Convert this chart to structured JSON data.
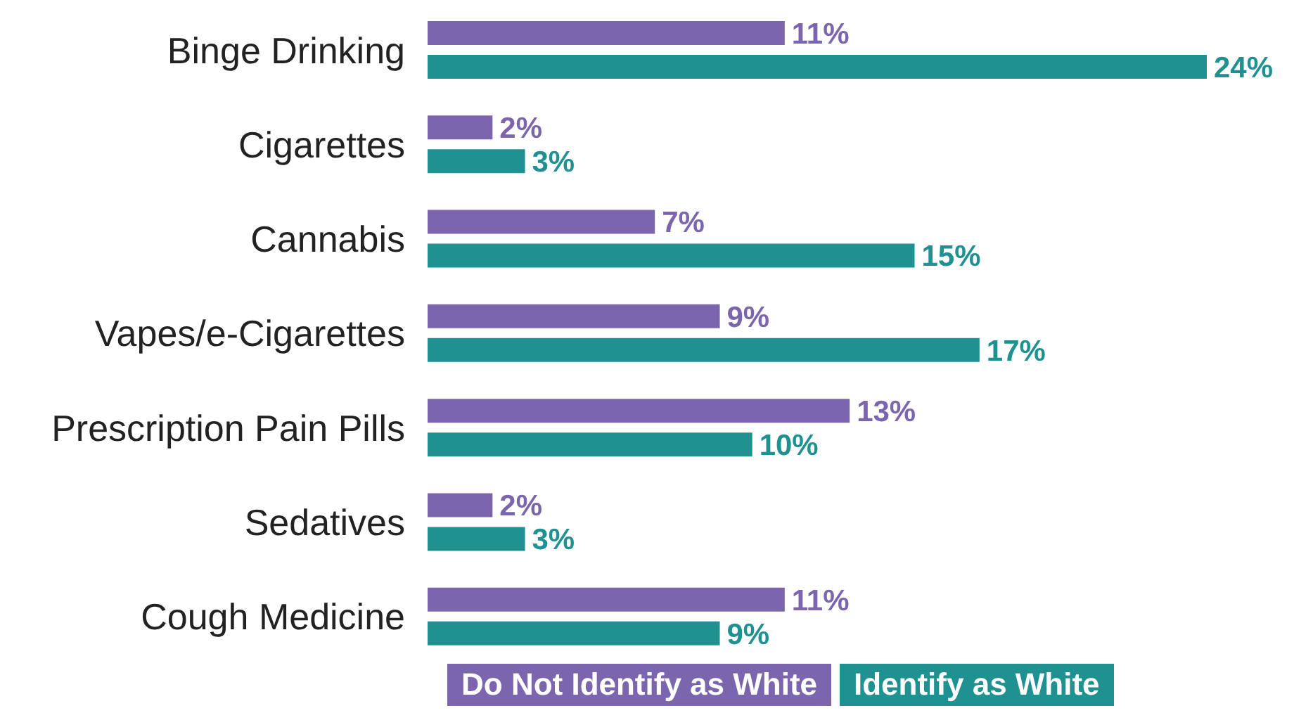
{
  "chart_data": {
    "type": "bar",
    "orientation": "horizontal",
    "categories": [
      "Binge Drinking",
      "Cigarettes",
      "Cannabis",
      "Vapes/e-Cigarettes",
      "Prescription Pain Pills",
      "Sedatives",
      "Cough Medicine"
    ],
    "series": [
      {
        "name": "Do Not Identify as White",
        "color": "#7b66ae",
        "values": [
          11,
          2,
          7,
          9,
          13,
          2,
          11
        ],
        "value_labels": [
          "11%",
          "2%",
          "7%",
          "9%",
          "13%",
          "2%",
          "11%"
        ]
      },
      {
        "name": "Identify as White",
        "color": "#1f9190",
        "values": [
          24,
          3,
          15,
          17,
          10,
          3,
          9
        ],
        "value_labels": [
          "24%",
          "3%",
          "15%",
          "17%",
          "10%",
          "3%",
          "9%"
        ]
      }
    ],
    "legend": "bottom",
    "grid": false
  }
}
